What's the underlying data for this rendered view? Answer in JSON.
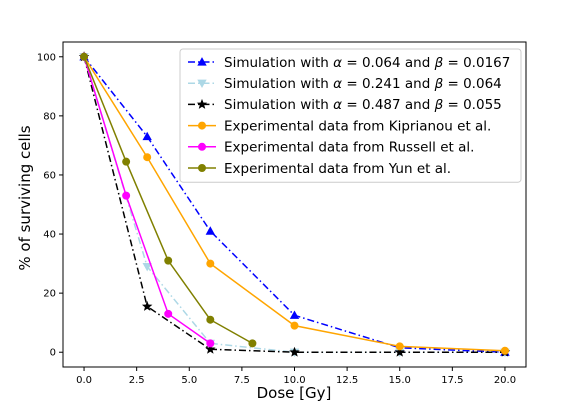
{
  "chart_data": {
    "type": "line",
    "xlabel": "Dose [Gy]",
    "ylabel": "% of surviving cells",
    "xlim": [
      -1.0,
      21.0
    ],
    "ylim": [
      -5,
      105
    ],
    "xticks": [
      "0.0",
      "2.5",
      "5.0",
      "7.5",
      "10.0",
      "12.5",
      "15.0",
      "17.5",
      "20.0"
    ],
    "yticks": [
      "0",
      "20",
      "40",
      "60",
      "80",
      "100"
    ],
    "grid": false,
    "legend_position": "top-right",
    "series": [
      {
        "name": "Simulation with α = 0.064 and β = 0.0167",
        "name_parts": [
          "Simulation with ",
          "α",
          " = 0.064 and ",
          "β",
          " = 0.0167"
        ],
        "color": "#0000ff",
        "line_style": "dashdot",
        "marker": "triangle-up",
        "x": [
          0,
          3,
          6,
          10,
          15,
          20
        ],
        "y": [
          100,
          73,
          41,
          12.5,
          1.5,
          0
        ]
      },
      {
        "name": "Simulation with α = 0.241 and β = 0.064",
        "name_parts": [
          "Simulation with ",
          "α",
          " = 0.241 and ",
          "β",
          " = 0.064"
        ],
        "color": "#add8e6",
        "line_style": "dashdot",
        "marker": "triangle-down",
        "x": [
          0,
          3,
          6,
          10,
          15,
          20
        ],
        "y": [
          100,
          29,
          3,
          0,
          0,
          0
        ]
      },
      {
        "name": "Simulation with α = 0.487 and β = 0.055",
        "name_parts": [
          "Simulation with ",
          "α",
          " = 0.487 and ",
          "β",
          " = 0.055"
        ],
        "color": "#000000",
        "line_style": "dashdot",
        "marker": "star",
        "x": [
          0,
          3,
          6,
          10,
          15,
          20
        ],
        "y": [
          100,
          15.5,
          1,
          0,
          0,
          0
        ]
      },
      {
        "name": "Experimental data from Kiprianou et al.",
        "name_parts": [
          "Experimental data from Kiprianou et al."
        ],
        "color": "#ffa500",
        "line_style": "solid",
        "marker": "circle",
        "x": [
          0,
          3,
          6,
          10,
          15,
          20
        ],
        "y": [
          100,
          66,
          30,
          9,
          2,
          0.5
        ]
      },
      {
        "name": "Experimental data from Russell et al.",
        "name_parts": [
          "Experimental data from Russell et al."
        ],
        "color": "#ff00ff",
        "line_style": "solid",
        "marker": "circle",
        "x": [
          0,
          2,
          4,
          6
        ],
        "y": [
          100,
          53,
          13,
          3
        ]
      },
      {
        "name": "Experimental data from Yun et al.",
        "name_parts": [
          "Experimental data from Yun et al."
        ],
        "color": "#808000",
        "line_style": "solid",
        "marker": "circle",
        "x": [
          0,
          2,
          4,
          6,
          8
        ],
        "y": [
          100,
          64.5,
          31,
          11,
          3
        ]
      }
    ]
  }
}
